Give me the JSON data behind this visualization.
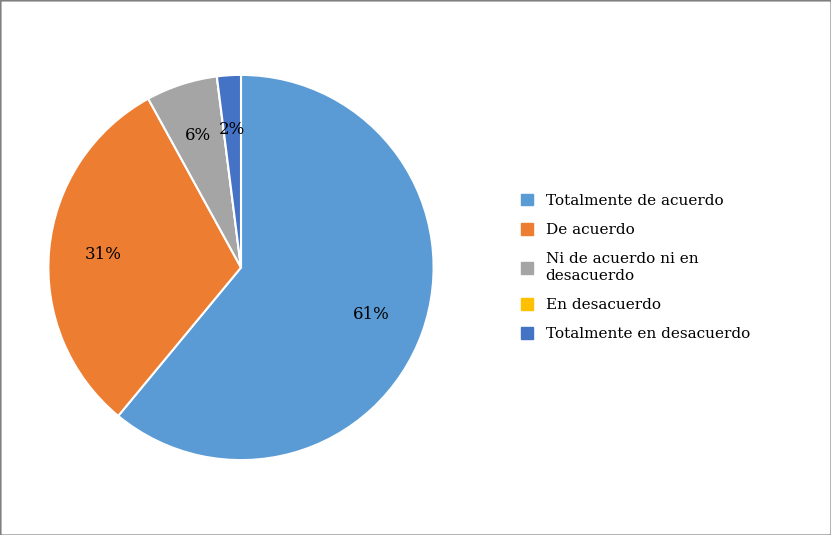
{
  "labels": [
    "Totalmente de acuerdo",
    "De acuerdo",
    "Ni de acuerdo ni en\ndesacuerdo",
    "En desacuerdo",
    "Totalmente en desacuerdo"
  ],
  "legend_labels": [
    "Totalmente de acuerdo",
    "De acuerdo",
    "Ni de acuerdo ni en\ndesacuerdo",
    "En desacuerdo",
    "Totalmente en desacuerdo"
  ],
  "values": [
    61,
    31,
    6,
    0,
    2
  ],
  "colors": [
    "#5B9BD5",
    "#ED7D31",
    "#A5A5A5",
    "#FFC000",
    "#4472C4"
  ],
  "background_color": "#FFFFFF",
  "legend_fontsize": 11,
  "autopct_fontsize": 12,
  "border_color": "#808080"
}
